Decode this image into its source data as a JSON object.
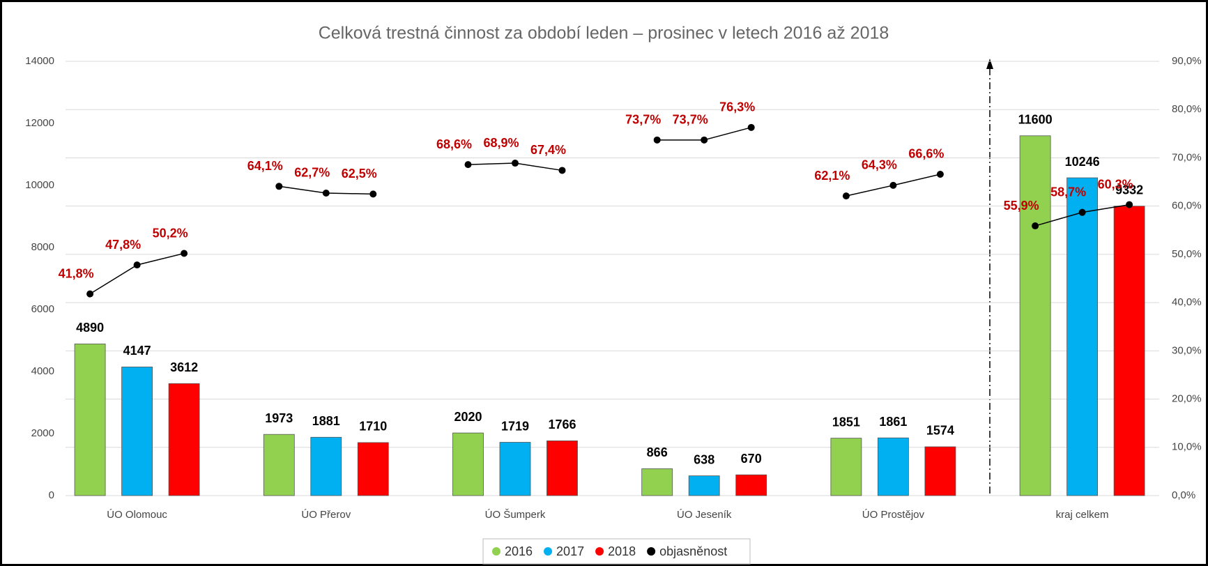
{
  "chart_data": {
    "type": "bar",
    "title": "Celková trestná činnost za období leden – prosinec v letech 2016 až 2018",
    "categories": [
      "ÚO Olomouc",
      "ÚO Přerov",
      "ÚO Šumperk",
      "ÚO Jeseník",
      "ÚO Prostějov",
      "kraj celkem"
    ],
    "series": [
      {
        "name": "2016",
        "color": "#92d050",
        "values": [
          4890,
          1973,
          2020,
          866,
          1851,
          11600
        ]
      },
      {
        "name": "2017",
        "color": "#00b0f0",
        "values": [
          4147,
          1881,
          1719,
          638,
          1861,
          10246
        ]
      },
      {
        "name": "2018",
        "color": "#ff0000",
        "values": [
          3612,
          1710,
          1766,
          670,
          1574,
          9332
        ]
      }
    ],
    "rate_series": {
      "name": "objasněnost",
      "color": "#000000",
      "axis": "y2",
      "values": [
        [
          41.8,
          47.8,
          50.2
        ],
        [
          64.1,
          62.7,
          62.5
        ],
        [
          68.6,
          68.9,
          67.4
        ],
        [
          73.7,
          73.7,
          76.3
        ],
        [
          62.1,
          64.3,
          66.6
        ],
        [
          55.9,
          58.7,
          60.3
        ]
      ],
      "value_labels": [
        [
          "41,8%",
          "47,8%",
          "50,2%"
        ],
        [
          "64,1%",
          "62,7%",
          "62,5%"
        ],
        [
          "68,6%",
          "68,9%",
          "67,4%"
        ],
        [
          "73,7%",
          "73,7%",
          "76,3%"
        ],
        [
          "62,1%",
          "64,3%",
          "66,6%"
        ],
        [
          "55,9%",
          "58,7%",
          "60,3%"
        ]
      ]
    },
    "ylim": [
      0,
      14000
    ],
    "yticks": [
      0,
      2000,
      4000,
      6000,
      8000,
      10000,
      12000,
      14000
    ],
    "y2lim": [
      0,
      90
    ],
    "y2ticks": [
      {
        "value": 0,
        "label": "0,0%"
      },
      {
        "value": 10,
        "label": "10,0%"
      },
      {
        "value": 20,
        "label": "20,0%"
      },
      {
        "value": 30,
        "label": "30,0%"
      },
      {
        "value": 40,
        "label": "40,0%"
      },
      {
        "value": 50,
        "label": "50,0%"
      },
      {
        "value": 60,
        "label": "60,0%"
      },
      {
        "value": 70,
        "label": "70,0%"
      },
      {
        "value": 80,
        "label": "80,0%"
      },
      {
        "value": 90,
        "label": "90,0%"
      }
    ],
    "grid": true
  }
}
